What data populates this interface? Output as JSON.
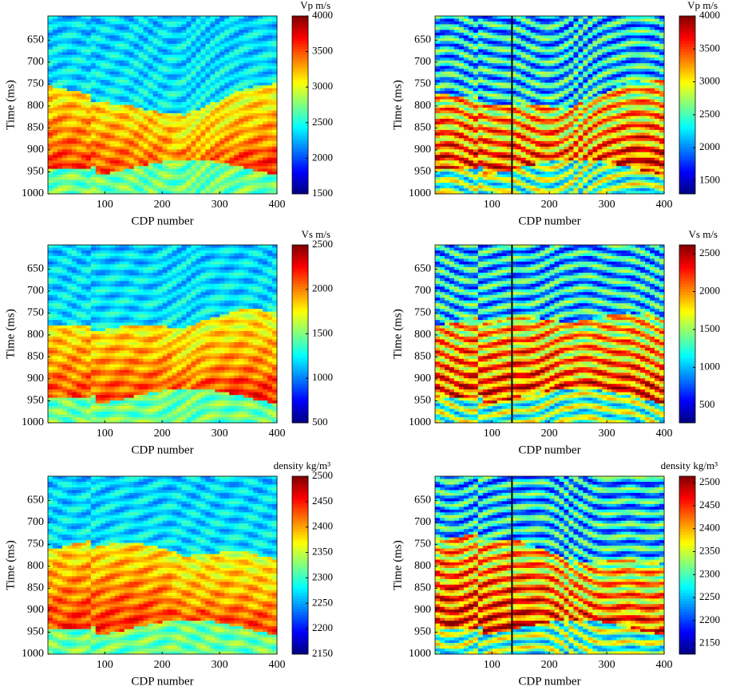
{
  "chart_data": [
    {
      "type": "heatmap",
      "xlabel": "CDP number",
      "ylabel": "Time (ms)",
      "colorbar_label": "Vp m/s",
      "xlim": [
        1,
        400
      ],
      "xticks": [
        100,
        200,
        300,
        400
      ],
      "ylim": [
        595,
        1000
      ],
      "yticks": [
        650,
        700,
        750,
        800,
        850,
        900,
        950,
        1000
      ],
      "clim": [
        1500,
        4000
      ],
      "cticks": [
        1500,
        2000,
        2500,
        3000,
        3500,
        4000
      ],
      "colormap": "jet"
    },
    {
      "type": "heatmap",
      "xlabel": "CDP number",
      "ylabel": "Time (ms)",
      "colorbar_label": "Vp m/s",
      "xlim": [
        1,
        400
      ],
      "xticks": [
        100,
        200,
        300,
        400
      ],
      "ylim": [
        595,
        1000
      ],
      "yticks": [
        650,
        700,
        750,
        800,
        850,
        900,
        950,
        1000
      ],
      "clim": [
        1300,
        4000
      ],
      "cticks": [
        1500,
        2000,
        2500,
        3000,
        3500,
        4000
      ],
      "colormap": "jet",
      "vline": 135
    },
    {
      "type": "heatmap",
      "xlabel": "CDP number",
      "ylabel": "Time (ms)",
      "colorbar_label": "Vs m/s",
      "xlim": [
        1,
        400
      ],
      "xticks": [
        100,
        200,
        300,
        400
      ],
      "ylim": [
        595,
        1000
      ],
      "yticks": [
        650,
        700,
        750,
        800,
        850,
        900,
        950,
        1000
      ],
      "clim": [
        500,
        2500
      ],
      "cticks": [
        500,
        1000,
        1500,
        2000,
        2500
      ],
      "colormap": "jet"
    },
    {
      "type": "heatmap",
      "xlabel": "CDP number",
      "ylabel": "Time (ms)",
      "colorbar_label": "Vs m/s",
      "xlim": [
        1,
        400
      ],
      "xticks": [
        100,
        200,
        300,
        400
      ],
      "ylim": [
        595,
        1000
      ],
      "yticks": [
        650,
        700,
        750,
        800,
        850,
        900,
        950,
        1000
      ],
      "clim": [
        270,
        2615
      ],
      "cticks": [
        500,
        1000,
        1500,
        2000,
        2500
      ],
      "colormap": "jet",
      "vline": 135
    },
    {
      "type": "heatmap",
      "xlabel": "CDP number",
      "ylabel": "Time (ms)",
      "colorbar_label": "density kg/m³",
      "xlim": [
        1,
        400
      ],
      "xticks": [
        100,
        200,
        300,
        400
      ],
      "ylim": [
        595,
        1000
      ],
      "yticks": [
        650,
        700,
        750,
        800,
        850,
        900,
        950,
        1000
      ],
      "clim": [
        2150,
        2500
      ],
      "cticks": [
        2150,
        2200,
        2250,
        2300,
        2350,
        2400,
        2450,
        2500
      ],
      "colormap": "jet"
    },
    {
      "type": "heatmap",
      "xlabel": "CDP number",
      "ylabel": "Time (ms)",
      "colorbar_label": "density kg/m³",
      "xlim": [
        1,
        400
      ],
      "xticks": [
        100,
        200,
        300,
        400
      ],
      "ylim": [
        595,
        1000
      ],
      "yticks": [
        650,
        700,
        750,
        800,
        850,
        900,
        950,
        1000
      ],
      "clim": [
        2127,
        2514
      ],
      "cticks": [
        2150,
        2200,
        2250,
        2300,
        2350,
        2400,
        2450,
        2500
      ],
      "colormap": "jet",
      "vline": 135
    }
  ]
}
